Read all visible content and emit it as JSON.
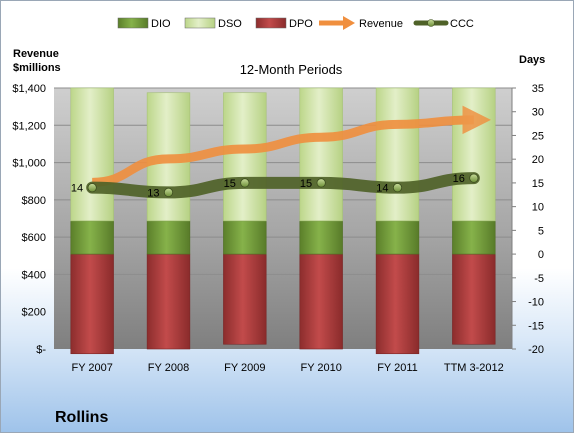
{
  "chart_data": {
    "type": "bar",
    "title": "12-Month Periods",
    "company": "Rollins",
    "y_left_label_line1": "Revenue",
    "y_left_label_line2": "$millions",
    "y_right_label": "Days",
    "categories": [
      "FY 2007",
      "FY 2008",
      "FY 2009",
      "FY 2010",
      "FY 2011",
      "TTM 3-2012"
    ],
    "ylim_left": [
      0,
      1400
    ],
    "ylim_right": [
      -20,
      35
    ],
    "left_ticks": [
      0,
      200,
      400,
      600,
      800,
      1000,
      1200,
      1400
    ],
    "left_tick_labels": [
      "$-",
      "$200",
      "$400",
      "$600",
      "$800",
      "$1,000",
      "$1,200",
      "$1,400"
    ],
    "right_ticks": [
      -20,
      -15,
      -10,
      -5,
      0,
      5,
      10,
      15,
      20,
      25,
      30,
      35
    ],
    "right_tick_labels": [
      "-20",
      "-15",
      "-10",
      "-5",
      "0",
      "5",
      "10",
      "15",
      "20",
      "25",
      "30",
      "35"
    ],
    "grid": true,
    "legend_position": "top",
    "series": [
      {
        "name": "DIO",
        "axis": "right",
        "color": "#6f9a35",
        "values": [
          7,
          7,
          7,
          7,
          7,
          7
        ]
      },
      {
        "name": "DSO",
        "axis": "right",
        "color": "#d0e4a6",
        "values": [
          28,
          27,
          27,
          28,
          28,
          28
        ]
      },
      {
        "name": "DPO",
        "axis": "right",
        "color": "#a5393a",
        "values": [
          21,
          20,
          19,
          20,
          21,
          19
        ]
      },
      {
        "name": "Revenue",
        "axis": "left",
        "color": "#f08f3e",
        "values": [
          894,
          1020,
          1073,
          1136,
          1205,
          1229
        ]
      },
      {
        "name": "CCC",
        "axis": "right",
        "color": "#4f6228",
        "values": [
          14,
          13,
          15,
          15,
          14,
          16
        ]
      }
    ],
    "ccc_labels": [
      "14",
      "13",
      "15",
      "15",
      "14",
      "16"
    ]
  }
}
